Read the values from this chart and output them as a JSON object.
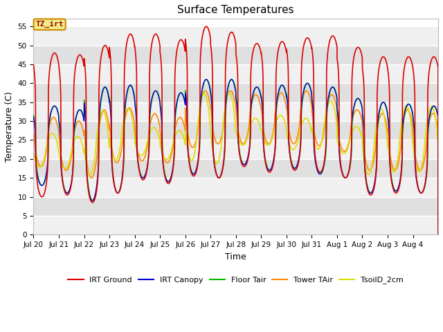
{
  "title": "Surface Temperatures",
  "xlabel": "Time",
  "ylabel": "Temperature (C)",
  "ylim": [
    0,
    57
  ],
  "yticks": [
    0,
    5,
    10,
    15,
    20,
    25,
    30,
    35,
    40,
    45,
    50,
    55
  ],
  "series": {
    "IRT Ground": {
      "color": "#dd0000",
      "lw": 1.2
    },
    "IRT Canopy": {
      "color": "#0000cc",
      "lw": 1.0
    },
    "Floor Tair": {
      "color": "#00bb00",
      "lw": 1.0
    },
    "Tower TAir": {
      "color": "#ff8800",
      "lw": 1.2
    },
    "TsoilD_2cm": {
      "color": "#dddd00",
      "lw": 1.2
    }
  },
  "background_color": "#ffffff",
  "plot_bg_light": "#f0f0f0",
  "plot_bg_dark": "#e0e0e0",
  "grid_color": "#ffffff",
  "annotation_text": "TZ_irt",
  "annotation_bg": "#eeee88",
  "annotation_border": "#cc8800",
  "annotation_text_color": "#aa0000",
  "xtick_labels": [
    "Jul 20",
    "Jul 21",
    "Jul 22",
    "Jul 23",
    "Jul 24",
    "Jul 25",
    "Jul 26",
    "Jul 27",
    "Jul 28",
    "Jul 29",
    "Jul 30",
    "Jul 31",
    "Aug 1",
    "Aug 2",
    "Aug 3",
    "Aug 4"
  ],
  "n_days": 16,
  "peaks_IRT_Ground": [
    48,
    47.5,
    50,
    53,
    53,
    51.5,
    55,
    53.5,
    50.5,
    51,
    52,
    52.5,
    49.5,
    47,
    47,
    47
  ],
  "troughs_IRT_Ground": [
    10,
    10.5,
    8.5,
    11,
    14.5,
    13.5,
    15.5,
    15,
    18,
    16.5,
    17,
    16.5,
    15,
    10.5,
    11,
    11
  ],
  "peaks_canopy": [
    34,
    33,
    39,
    39.5,
    38,
    37.5,
    41,
    41,
    39,
    39.5,
    40,
    39,
    36,
    35,
    34.5,
    34
  ],
  "troughs_canopy": [
    13,
    11,
    9,
    11,
    15,
    14,
    16,
    15,
    18.5,
    17,
    17.5,
    16,
    15,
    11,
    11.5,
    11
  ],
  "peaks_floor": [
    34,
    33,
    39,
    39.5,
    38,
    37.5,
    41,
    41,
    39,
    39.5,
    40,
    39,
    36,
    35,
    34.5,
    34
  ],
  "troughs_floor": [
    13,
    11,
    9,
    11,
    15,
    14,
    16,
    15,
    18.5,
    17,
    17.5,
    16,
    15,
    11,
    11.5,
    11
  ],
  "peaks_tower": [
    31,
    30,
    33,
    33.5,
    32,
    31,
    38,
    38,
    37,
    37.5,
    38,
    37,
    33,
    32,
    33,
    32
  ],
  "troughs_tower": [
    18,
    17,
    15,
    19,
    19.5,
    19,
    23,
    24,
    24,
    24,
    24,
    23.5,
    22,
    17,
    17,
    17
  ],
  "peaks_soil1": [
    31,
    32,
    34,
    34,
    33.5,
    33,
    41,
    40,
    39.5,
    40,
    39.5,
    39,
    35.5,
    34,
    34.5,
    34
  ],
  "troughs_soil1": [
    22,
    21,
    20,
    22,
    22,
    21,
    20,
    19.5,
    24.5,
    24.5,
    23,
    23,
    22,
    17,
    17,
    17
  ],
  "peaks_soil2": [
    24,
    22,
    32,
    33,
    25,
    24,
    35,
    36,
    25,
    26,
    25,
    33,
    24,
    33,
    34,
    34
  ],
  "troughs_soil2": [
    15,
    15,
    13,
    18,
    20,
    19,
    19,
    18,
    23,
    23,
    22,
    22,
    21,
    15,
    16,
    16
  ]
}
